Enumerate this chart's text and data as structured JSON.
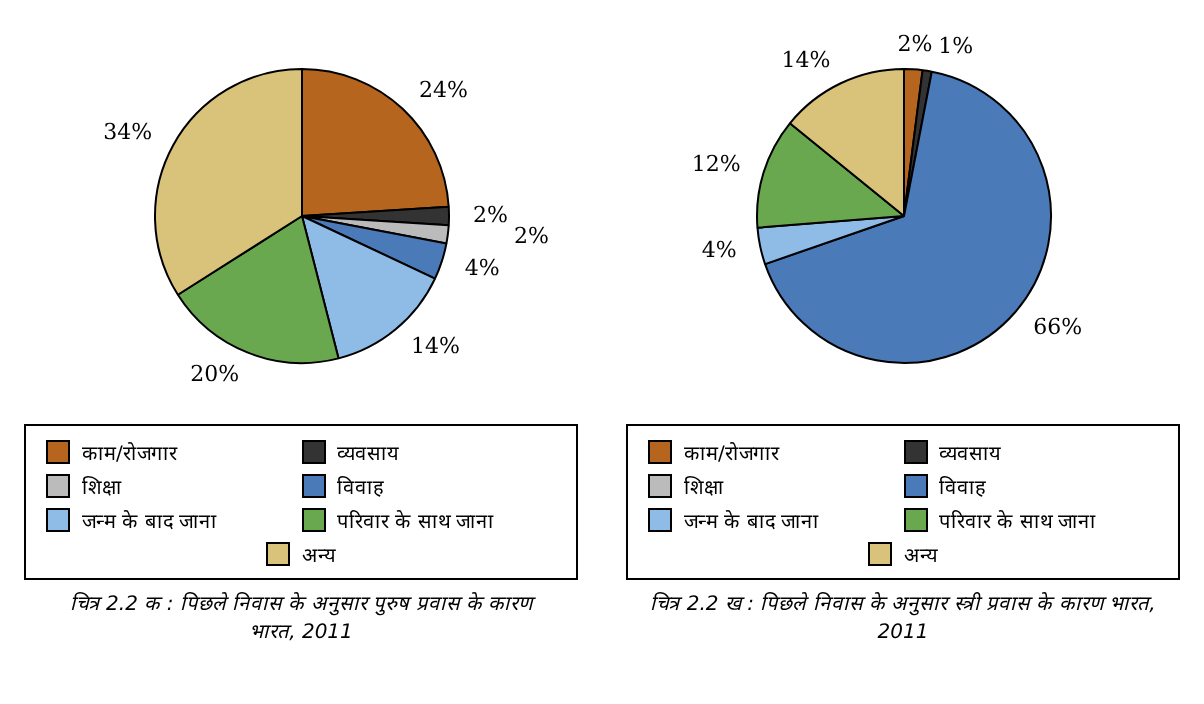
{
  "chart_data": [
    {
      "type": "pie",
      "title": "चित्र 2.2 क : पिछले निवास के अनुसार पुरुष प्रवास के कारण भारत, 2011",
      "categories": [
        "काम/रोजगार",
        "व्यवसाय",
        "शिक्षा",
        "विवाह",
        "जन्म के बाद जाना",
        "परिवार के साथ जाना",
        "अन्य"
      ],
      "values": [
        24,
        2,
        2,
        4,
        14,
        20,
        34
      ],
      "value_labels": [
        "24%",
        "2%",
        "2%",
        "4%",
        "14%",
        "20%",
        "34%"
      ],
      "colors": [
        "#b5651d",
        "#333333",
        "#bbbbbb",
        "#4a7ab8",
        "#8fbce6",
        "#6aa84f",
        "#d9c27a"
      ],
      "legend": "bottom"
    },
    {
      "type": "pie",
      "title": "चित्र 2.2 ख : पिछले निवास के अनुसार स्त्री प्रवास के कारण भारत, 2011",
      "categories": [
        "काम/रोजगार",
        "व्यवसाय",
        "शिक्षा",
        "विवाह",
        "जन्म के बाद जाना",
        "परिवार के साथ जाना",
        "अन्य"
      ],
      "values": [
        2,
        1,
        null,
        66,
        4,
        12,
        14
      ],
      "value_labels": [
        "2%",
        "1%",
        null,
        "66%",
        "4%",
        "12%",
        "14%"
      ],
      "colors": [
        "#b5651d",
        "#333333",
        "#bbbbbb",
        "#4a7ab8",
        "#8fbce6",
        "#6aa84f",
        "#d9c27a"
      ],
      "legend": "bottom"
    }
  ]
}
